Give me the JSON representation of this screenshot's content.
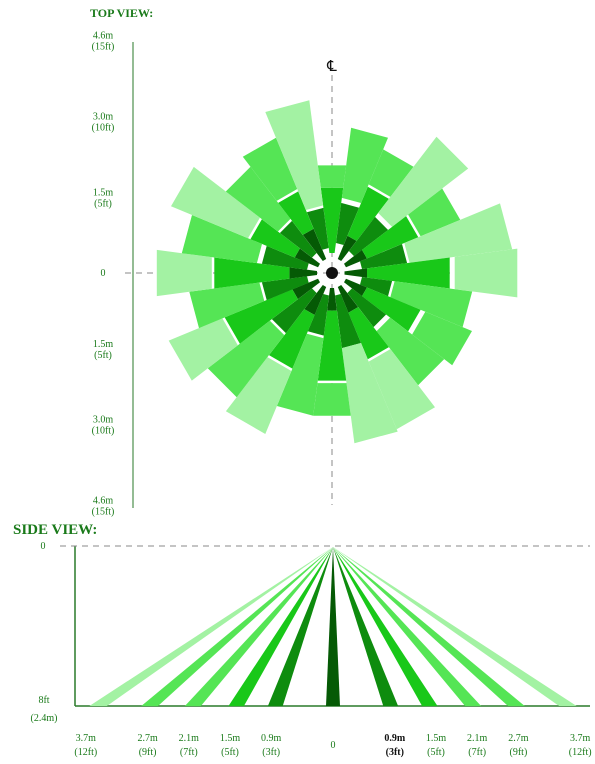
{
  "top_view": {
    "title": "TOP VIEW:",
    "centerline_symbol": "℄",
    "y_labels": [
      {
        "value": 4.6,
        "line1": "4.6m",
        "line2": "(15ft)"
      },
      {
        "value": 3.0,
        "line1": "3.0m",
        "line2": "(10ft)"
      },
      {
        "value": 1.5,
        "line1": "1.5m",
        "line2": "(5ft)"
      },
      {
        "value": 0,
        "line1": "0",
        "line2": ""
      },
      {
        "value": -1.5,
        "line1": "1.5m",
        "line2": "(5ft)"
      },
      {
        "value": -3.0,
        "line1": "3.0m",
        "line2": "(10ft)"
      },
      {
        "value": -4.6,
        "line1": "4.6m",
        "line2": "(15ft)"
      }
    ],
    "beams": [
      {
        "angle": -90,
        "zones": [
          {
            "start": 0.4,
            "end": 1.7,
            "level": 3
          },
          {
            "start": 1.7,
            "end": 2.15,
            "level": 2
          }
        ]
      },
      {
        "angle": -75,
        "zones": [
          {
            "start": 0.6,
            "end": 1.4,
            "level": 4
          },
          {
            "start": 1.5,
            "end": 2.9,
            "level": 2
          }
        ]
      },
      {
        "angle": -60,
        "zones": [
          {
            "start": 0.3,
            "end": 0.8,
            "level": 5
          },
          {
            "start": 0.8,
            "end": 1.85,
            "level": 3
          },
          {
            "start": 1.9,
            "end": 2.65,
            "level": 2
          }
        ]
      },
      {
        "angle": -45,
        "zones": [
          {
            "start": 0.55,
            "end": 1.4,
            "level": 4
          },
          {
            "start": 1.5,
            "end": 3.4,
            "level": 1
          }
        ]
      },
      {
        "angle": -30,
        "zones": [
          {
            "start": 0.3,
            "end": 0.75,
            "level": 5
          },
          {
            "start": 0.75,
            "end": 1.85,
            "level": 3
          },
          {
            "start": 1.9,
            "end": 2.75,
            "level": 2
          }
        ]
      },
      {
        "angle": -15,
        "zones": [
          {
            "start": 0.6,
            "end": 1.5,
            "level": 4
          },
          {
            "start": 1.55,
            "end": 3.6,
            "level": 1
          }
        ]
      },
      {
        "angle": 0,
        "zones": [
          {
            "start": 0.25,
            "end": 0.7,
            "level": 5
          },
          {
            "start": 0.7,
            "end": 2.35,
            "level": 3
          },
          {
            "start": 2.45,
            "end": 3.7,
            "level": 1
          }
        ]
      },
      {
        "angle": 15,
        "zones": [
          {
            "start": 0.6,
            "end": 1.2,
            "level": 4
          },
          {
            "start": 1.25,
            "end": 2.8,
            "level": 2
          }
        ]
      },
      {
        "angle": 30,
        "zones": [
          {
            "start": 0.3,
            "end": 0.75,
            "level": 5
          },
          {
            "start": 0.75,
            "end": 1.9,
            "level": 3
          },
          {
            "start": 2.0,
            "end": 3.0,
            "level": 2
          }
        ]
      },
      {
        "angle": 45,
        "zones": [
          {
            "start": 0.5,
            "end": 1.35,
            "level": 4
          },
          {
            "start": 1.45,
            "end": 2.8,
            "level": 2
          }
        ]
      },
      {
        "angle": 60,
        "zones": [
          {
            "start": 0.3,
            "end": 0.85,
            "level": 5
          },
          {
            "start": 0.85,
            "end": 1.85,
            "level": 3
          },
          {
            "start": 1.9,
            "end": 3.35,
            "level": 1
          }
        ]
      },
      {
        "angle": 75,
        "zones": [
          {
            "start": 0.45,
            "end": 1.5,
            "level": 4
          },
          {
            "start": 1.5,
            "end": 3.4,
            "level": 1
          }
        ]
      },
      {
        "angle": 90,
        "zones": [
          {
            "start": 0.3,
            "end": 0.75,
            "level": 5
          },
          {
            "start": 0.75,
            "end": 2.15,
            "level": 3
          },
          {
            "start": 2.2,
            "end": 2.85,
            "level": 2
          }
        ]
      },
      {
        "angle": 105,
        "zones": [
          {
            "start": 0.45,
            "end": 1.25,
            "level": 4
          },
          {
            "start": 1.3,
            "end": 2.85,
            "level": 2
          }
        ]
      },
      {
        "angle": 120,
        "zones": [
          {
            "start": 0.3,
            "end": 0.9,
            "level": 5
          },
          {
            "start": 0.9,
            "end": 2.05,
            "level": 3
          },
          {
            "start": 2.1,
            "end": 3.45,
            "level": 1
          }
        ]
      },
      {
        "angle": 135,
        "zones": [
          {
            "start": 0.5,
            "end": 1.5,
            "level": 4
          },
          {
            "start": 1.55,
            "end": 3.1,
            "level": 2
          }
        ]
      },
      {
        "angle": 150,
        "zones": [
          {
            "start": 0.3,
            "end": 0.85,
            "level": 5
          },
          {
            "start": 0.85,
            "end": 2.3,
            "level": 3
          },
          {
            "start": 2.35,
            "end": 3.5,
            "level": 1
          }
        ]
      },
      {
        "angle": 165,
        "zones": [
          {
            "start": 0.5,
            "end": 1.4,
            "level": 4
          },
          {
            "start": 1.45,
            "end": 2.85,
            "level": 2
          }
        ]
      },
      {
        "angle": 180,
        "zones": [
          {
            "start": 0.3,
            "end": 0.85,
            "level": 5
          },
          {
            "start": 0.85,
            "end": 2.35,
            "level": 3
          },
          {
            "start": 2.4,
            "end": 3.5,
            "level": 1
          }
        ]
      },
      {
        "angle": 195,
        "zones": [
          {
            "start": 0.5,
            "end": 1.4,
            "level": 4
          },
          {
            "start": 1.5,
            "end": 3.0,
            "level": 2
          }
        ]
      },
      {
        "angle": 210,
        "zones": [
          {
            "start": 0.3,
            "end": 0.8,
            "level": 5
          },
          {
            "start": 0.8,
            "end": 1.75,
            "level": 3
          },
          {
            "start": 1.8,
            "end": 3.45,
            "level": 1
          }
        ]
      },
      {
        "angle": 225,
        "zones": [
          {
            "start": 0.5,
            "end": 1.3,
            "level": 4
          },
          {
            "start": 1.35,
            "end": 2.65,
            "level": 2
          }
        ]
      },
      {
        "angle": 240,
        "zones": [
          {
            "start": 0.3,
            "end": 0.95,
            "level": 5
          },
          {
            "start": 0.95,
            "end": 1.75,
            "level": 3
          },
          {
            "start": 1.8,
            "end": 2.9,
            "level": 2
          }
        ]
      },
      {
        "angle": 255,
        "zones": [
          {
            "start": 0.5,
            "end": 1.3,
            "level": 4
          },
          {
            "start": 1.35,
            "end": 3.45,
            "level": 1
          }
        ]
      }
    ]
  },
  "side_view": {
    "title": "SIDE VIEW:",
    "top_label": "0",
    "bottom_label_line1": "8ft",
    "bottom_label_line2": "(2.4m)",
    "x_labels": [
      {
        "value": -12,
        "line1": "3.7m",
        "line2": "(12ft)",
        "bold": false
      },
      {
        "value": -9,
        "line1": "2.7m",
        "line2": "(9ft)",
        "bold": false
      },
      {
        "value": -7,
        "line1": "2.1m",
        "line2": "(7ft)",
        "bold": false
      },
      {
        "value": -5,
        "line1": "1.5m",
        "line2": "(5ft)",
        "bold": false
      },
      {
        "value": -3,
        "line1": "0.9m",
        "line2": "(3ft)",
        "bold": false
      },
      {
        "value": 0,
        "line1": "0",
        "line2": "",
        "bold": false
      },
      {
        "value": 3,
        "line1": "0.9m",
        "line2": "(3ft)",
        "bold": true
      },
      {
        "value": 5,
        "line1": "1.5m",
        "line2": "(5ft)",
        "bold": false
      },
      {
        "value": 7,
        "line1": "2.1m",
        "line2": "(7ft)",
        "bold": false
      },
      {
        "value": 9,
        "line1": "2.7m",
        "line2": "(9ft)",
        "bold": false
      },
      {
        "value": 12,
        "line1": "3.7m",
        "line2": "(12ft)",
        "bold": false
      }
    ],
    "beams": [
      {
        "foot": 0,
        "level": 5
      },
      {
        "foot": -2.8,
        "level": 4
      },
      {
        "foot": 2.8,
        "level": 4
      },
      {
        "foot": -4.7,
        "level": 3
      },
      {
        "foot": 4.7,
        "level": 3
      },
      {
        "foot": -6.8,
        "level": 2
      },
      {
        "foot": 6.8,
        "level": 2
      },
      {
        "foot": -8.9,
        "level": 2
      },
      {
        "foot": 8.9,
        "level": 2
      },
      {
        "foot": -11.4,
        "level": 1
      },
      {
        "foot": 11.4,
        "level": 1
      }
    ]
  },
  "colors": {
    "level1": "#a3f2a3",
    "level2": "#55e555",
    "level3": "#19c819",
    "level4": "#0e8c0e",
    "level5": "#055a05",
    "label": "#1a7a1a",
    "axis": "#2a7a2a",
    "dash": "#888888"
  }
}
